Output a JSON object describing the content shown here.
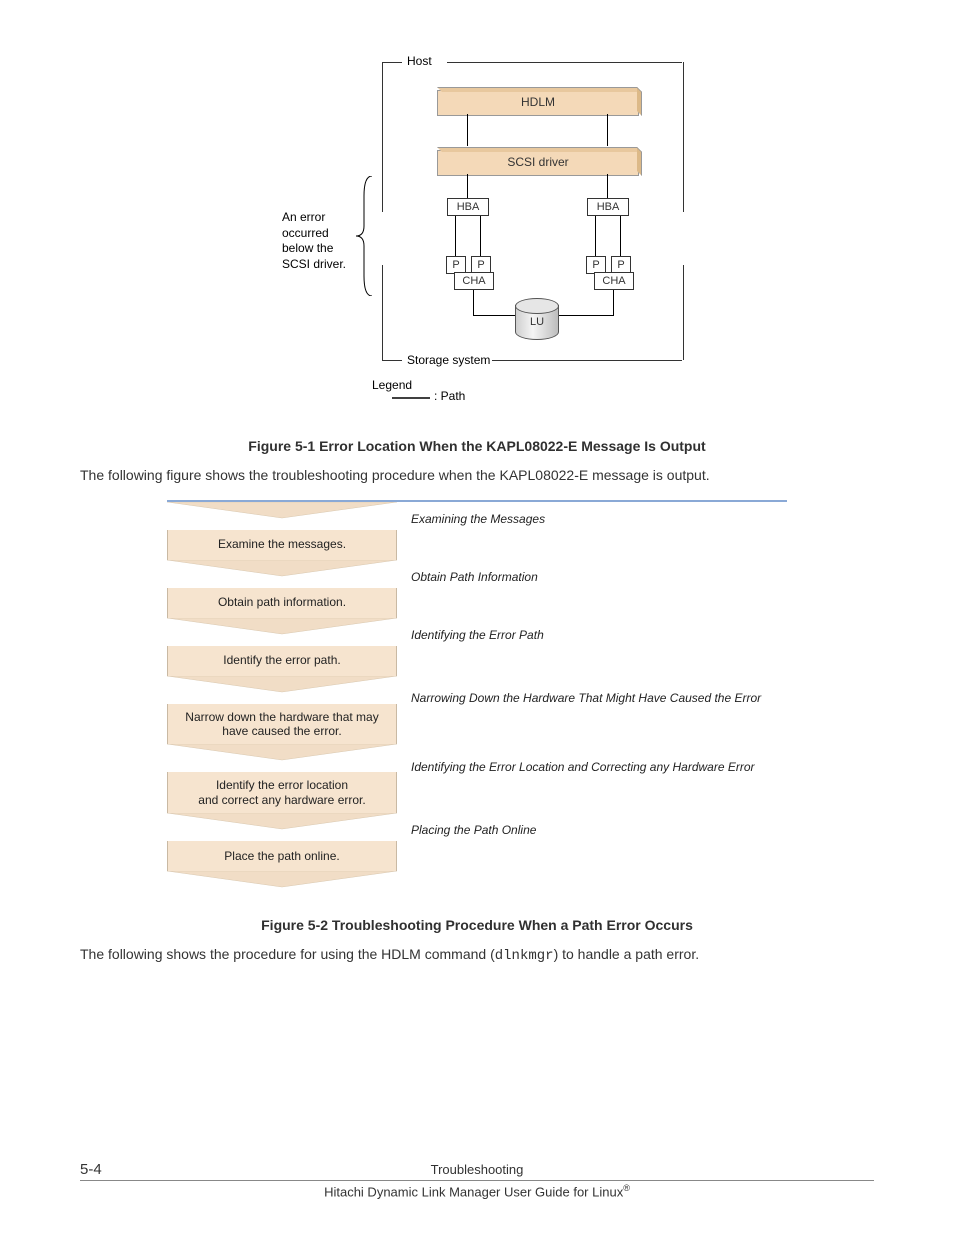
{
  "colors": {
    "box3d_fill": "#f4d9b8",
    "flow_fill": "#f6e4cf",
    "flow_border_top": "#8aa9d6",
    "text": "#333333"
  },
  "arch": {
    "host_label": "Host",
    "hdlm_label": "HDLM",
    "scsi_label": "SCSI driver",
    "hba_label": "HBA",
    "p_label": "P",
    "cha_label": "CHA",
    "lu_label": "LU",
    "storage_label": "Storage system",
    "legend_label": "Legend",
    "legend_path": ": Path",
    "error_text_l1": "An error",
    "error_text_l2": "occurred",
    "error_text_l3": "below the",
    "error_text_l4": "SCSI driver."
  },
  "caption1": "Figure 5-1 Error Location When the KAPL08022-E Message Is Output",
  "para1": "The following figure shows the troubleshooting procedure when the KAPL08022-E message is output.",
  "flow": {
    "type": "flowchart",
    "step_fill": "#f6e4cf",
    "desc_font_style": "italic",
    "steps": [
      {
        "step": "Examine the messages.",
        "desc": "Examining the Messages"
      },
      {
        "step": "Obtain path information.",
        "desc": "Obtain Path Information"
      },
      {
        "step": "Identify the error path.",
        "desc": "Identifying the Error Path"
      },
      {
        "step": "Narrow down the hardware that may have caused the error.",
        "desc": "Narrowing Down the Hardware That Might Have Caused the Error"
      },
      {
        "step": "Identify the error location\nand correct any hardware error.",
        "desc": "Identifying the Error Location and Correcting any Hardware Error"
      },
      {
        "step": "Place the path online.",
        "desc": "Placing the Path Online"
      }
    ]
  },
  "caption2": "Figure 5-2 Troubleshooting Procedure When a Path Error Occurs",
  "para2_a": "The following shows the procedure for using the HDLM command (",
  "para2_code": "dlnkmgr",
  "para2_b": ") to handle a path error.",
  "footer": {
    "pageno": "5-4",
    "section": "Troubleshooting",
    "book": "Hitachi Dynamic Link Manager User Guide for Linux",
    "reg": "®"
  }
}
